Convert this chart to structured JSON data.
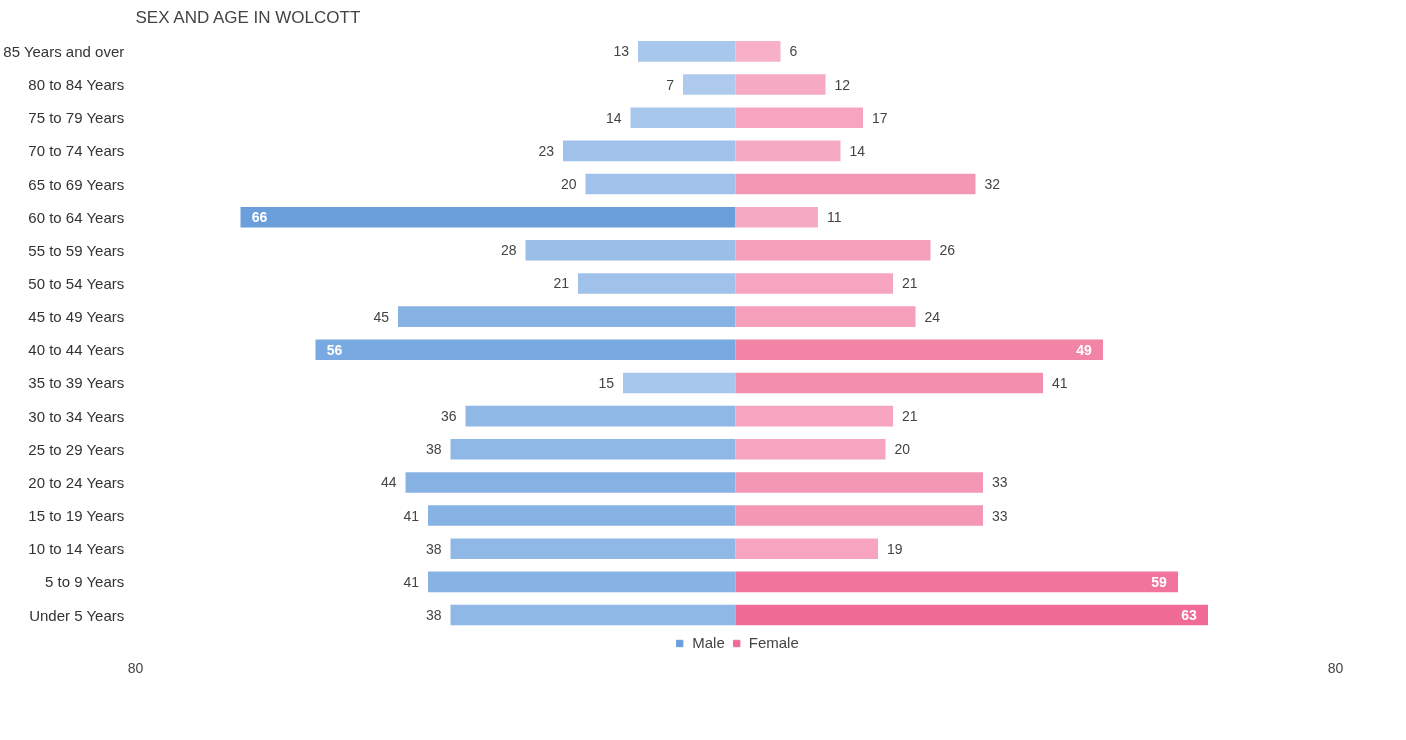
{
  "chart_data": {
    "type": "bar",
    "orientation": "horizontal",
    "title": "SEX AND AGE IN WOLCOTT",
    "categories": [
      "85 Years and over",
      "80 to 84 Years",
      "75 to 79 Years",
      "70 to 74 Years",
      "65 to 69 Years",
      "60 to 64 Years",
      "55 to 59 Years",
      "50 to 54 Years",
      "45 to 49 Years",
      "40 to 44 Years",
      "35 to 39 Years",
      "30 to 34 Years",
      "25 to 29 Years",
      "20 to 24 Years",
      "15 to 19 Years",
      "10 to 14 Years",
      "5 to 9 Years",
      "Under 5 Years"
    ],
    "series": [
      {
        "name": "Male",
        "color": "#6a9fdc",
        "values": [
          13,
          7,
          14,
          23,
          20,
          66,
          28,
          21,
          45,
          56,
          15,
          36,
          38,
          44,
          41,
          38,
          41,
          38
        ],
        "base": [
          -13,
          -7,
          -14,
          -23,
          -20,
          -66,
          -28,
          -21,
          -45,
          -56,
          -15,
          -36,
          -38,
          -44,
          -41,
          -38,
          -41,
          -38
        ],
        "value_labels": [
          "13",
          "7",
          "14",
          "23",
          "20",
          "66",
          "28",
          "21",
          "45",
          "56",
          "15",
          "36",
          "38",
          "44",
          "41",
          "38",
          "41",
          "38"
        ],
        "colors": [
          "#a8c7ec",
          "#aecbee",
          "#a8c7ec",
          "#a0c2ea",
          "#a0c2ea",
          "#6a9fdc",
          "#9abee8",
          "#a0c2ea",
          "#87b2e4",
          "#78a9e0",
          "#a8c7ec",
          "#90b8e6",
          "#90b8e6",
          "#87b2e4",
          "#87b2e4",
          "#90b8e6",
          "#87b2e4",
          "#90b8e6"
        ]
      },
      {
        "name": "Female",
        "color": "#f06c96",
        "values": [
          6,
          12,
          17,
          14,
          32,
          11,
          26,
          21,
          24,
          49,
          41,
          21,
          20,
          33,
          33,
          19,
          59,
          63
        ],
        "value_labels": [
          "6",
          "12",
          "17",
          "14",
          "32",
          "11",
          "26",
          "21",
          "24",
          "49",
          "41",
          "21",
          "20",
          "33",
          "33",
          "19",
          "59",
          "63"
        ],
        "colors": [
          "#f8b0c8",
          "#f7aac3",
          "#f6a4bf",
          "#f7aac3",
          "#f497b5",
          "#f7aac3",
          "#f59fbb",
          "#f6a4bf",
          "#f59fbb",
          "#f284a6",
          "#f38ead",
          "#f6a4bf",
          "#f6a4bf",
          "#f497b5",
          "#f497b5",
          "#f6a4bf",
          "#f1749c",
          "#f06c96"
        ]
      }
    ],
    "xlim": [
      -80,
      80
    ],
    "xticks": [
      {
        "value": -80,
        "label": "80"
      },
      {
        "value": 80,
        "label": "80"
      }
    ],
    "legend": "bottom",
    "grid": false
  }
}
